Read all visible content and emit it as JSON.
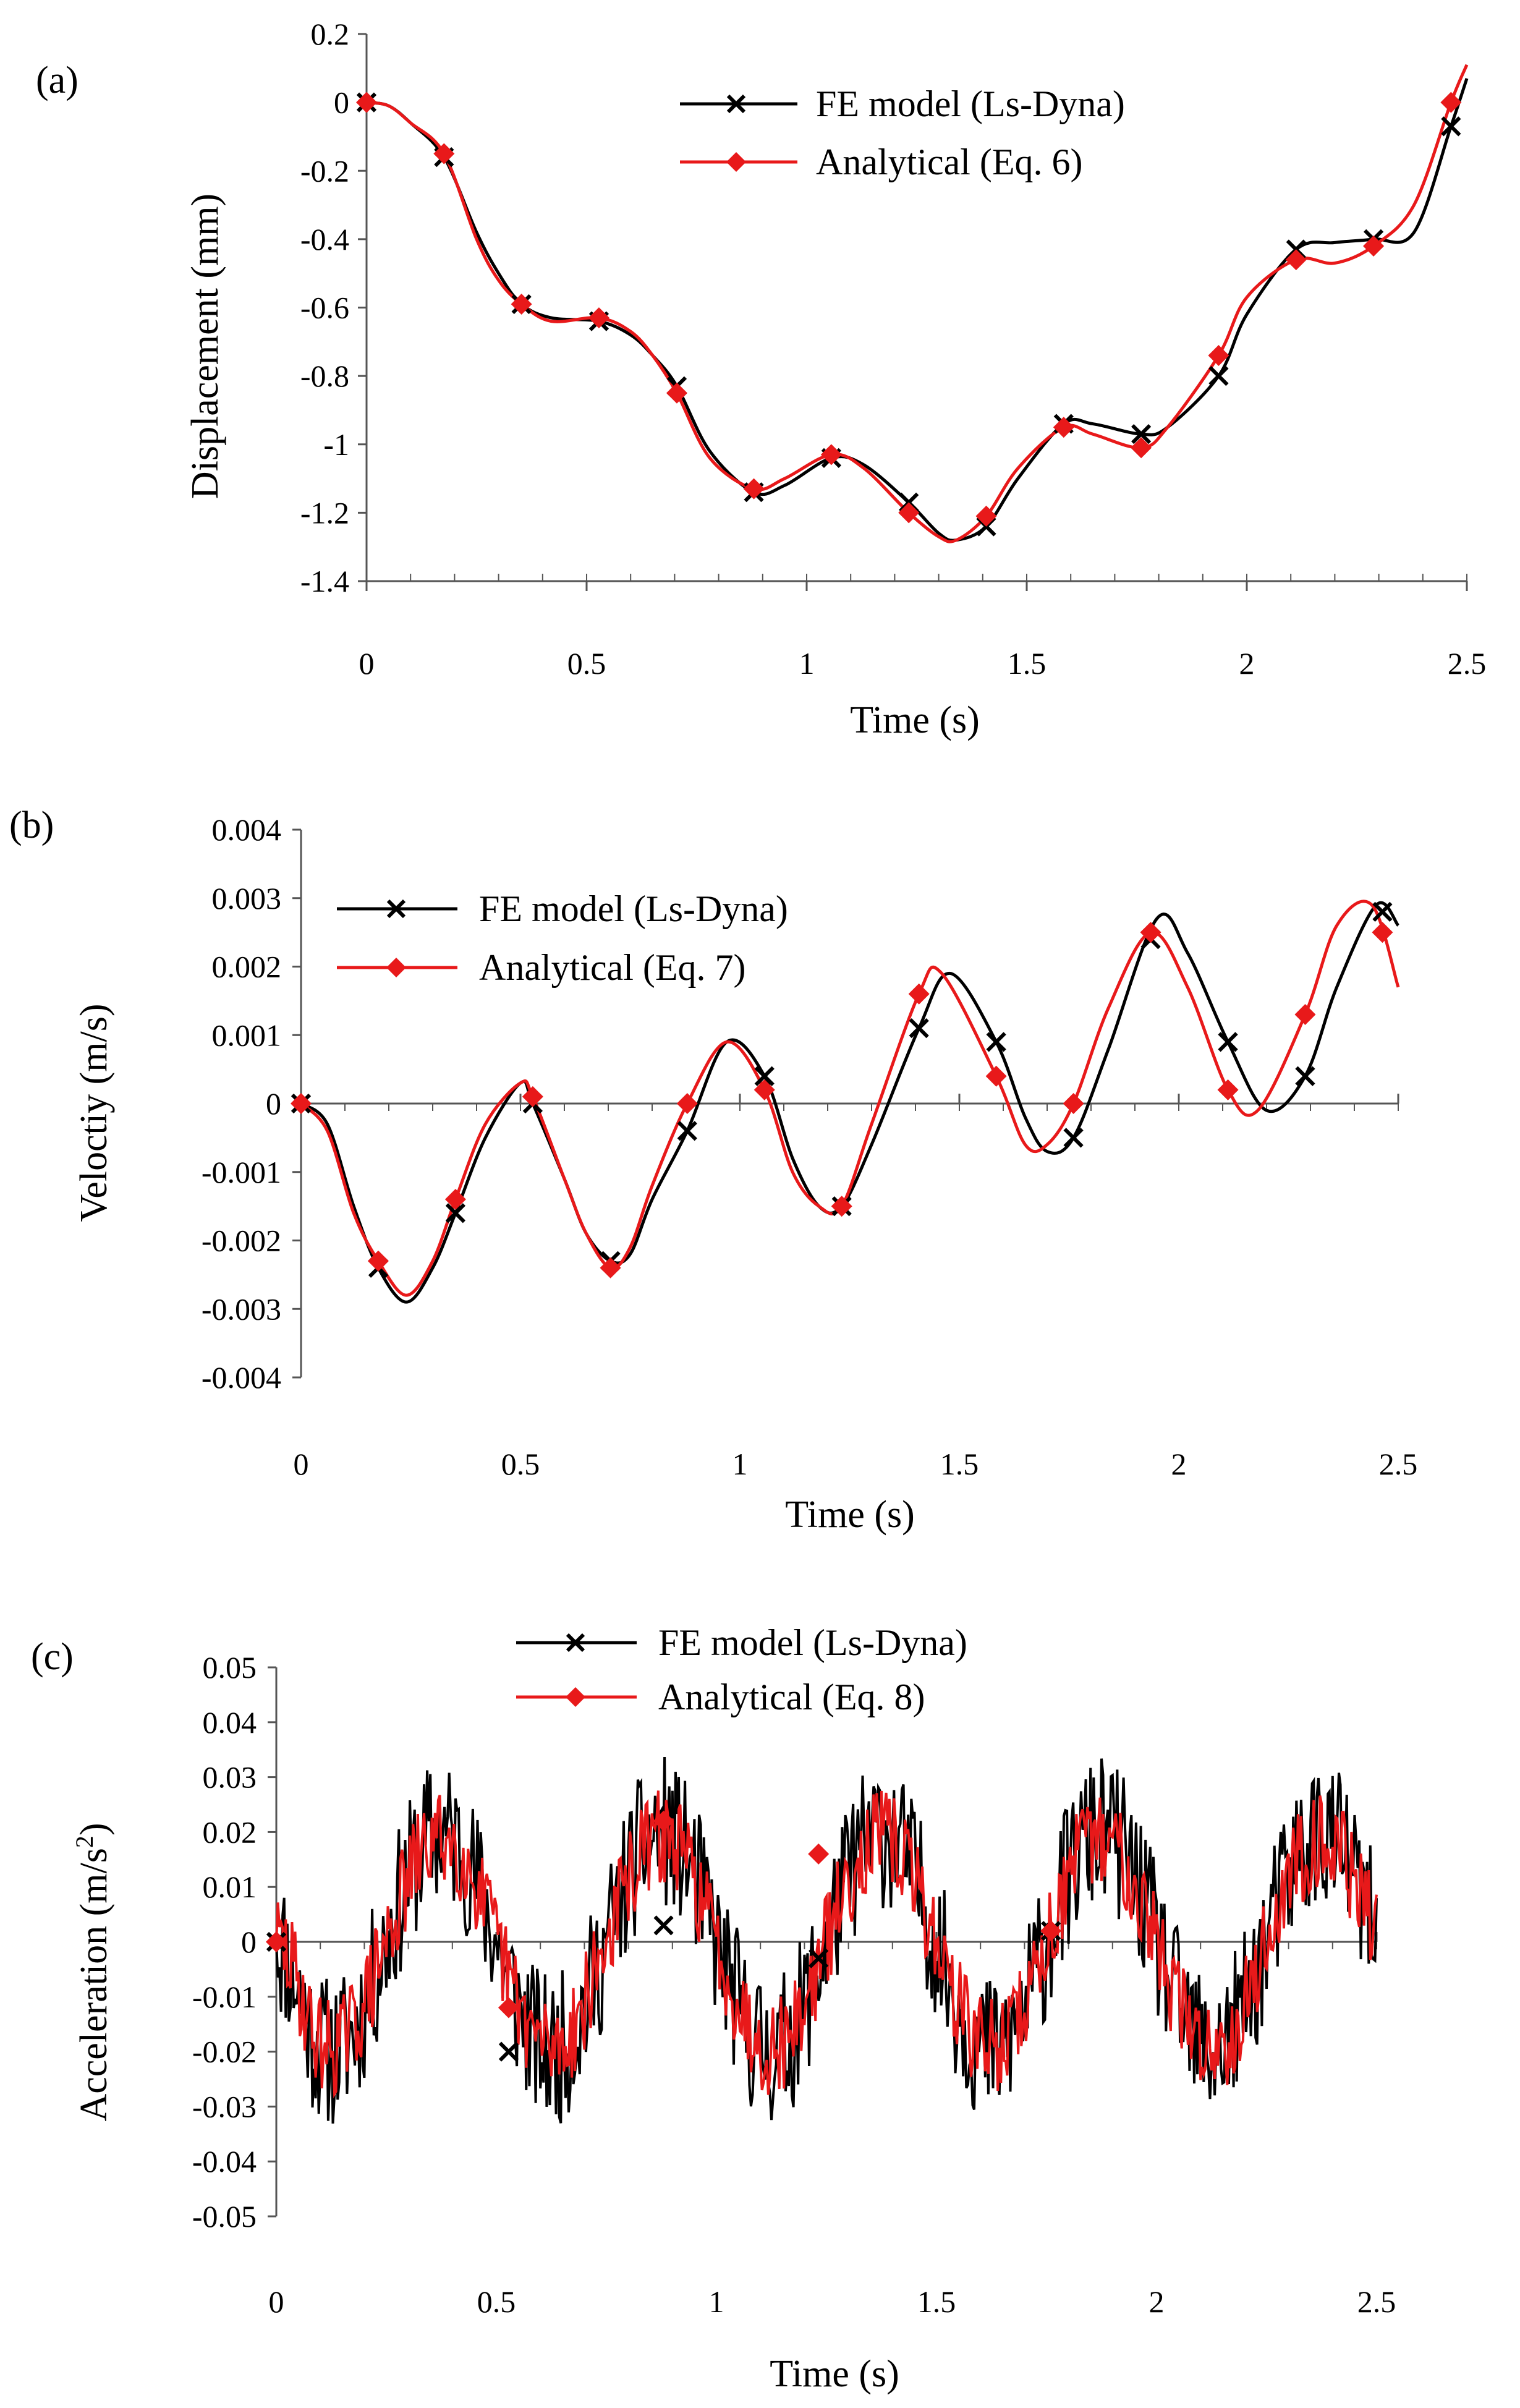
{
  "colors": {
    "fe": "#000000",
    "analytical": "#e8191a"
  },
  "chart_data": [
    {
      "panel": "(a)",
      "type": "line",
      "xlabel": "Time (s)",
      "ylabel": "Displacement (mm)",
      "xlim": [
        0,
        2.5
      ],
      "ylim": [
        -1.4,
        0.2
      ],
      "xticks": [
        "0",
        "0.5",
        "1",
        "1.5",
        "2",
        "2.5"
      ],
      "xtick_values": [
        0,
        0.5,
        1,
        1.5,
        2,
        2.5
      ],
      "yticks": [
        "0.2",
        "0",
        "-0.2",
        "-0.4",
        "-0.6",
        "-0.8",
        "-1",
        "-1.2",
        "-1.4"
      ],
      "ytick_values": [
        0.2,
        0,
        -0.2,
        -0.4,
        -0.6,
        -0.8,
        -1,
        -1.2,
        -1.4
      ],
      "grid": false,
      "legend_position": "top-right",
      "series": [
        {
          "name": "FE model (Ls-Dyna)",
          "color": "#000000",
          "marker": "x",
          "x": [
            0,
            0.05,
            0.1,
            0.176,
            0.25,
            0.3,
            0.352,
            0.42,
            0.528,
            0.6,
            0.65,
            0.705,
            0.78,
            0.88,
            0.95,
            1.056,
            1.13,
            1.232,
            1.3,
            1.34,
            1.408,
            1.48,
            1.584,
            1.65,
            1.76,
            1.82,
            1.936,
            2.0,
            2.112,
            2.2,
            2.288,
            2.38,
            2.464,
            2.5
          ],
          "y": [
            0,
            -0.01,
            -0.06,
            -0.16,
            -0.38,
            -0.5,
            -0.59,
            -0.63,
            -0.64,
            -0.68,
            -0.74,
            -0.83,
            -1.02,
            -1.14,
            -1.12,
            -1.04,
            -1.06,
            -1.17,
            -1.26,
            -1.28,
            -1.24,
            -1.1,
            -0.94,
            -0.94,
            -0.97,
            -0.95,
            -0.8,
            -0.62,
            -0.43,
            -0.41,
            -0.4,
            -0.38,
            -0.07,
            0.07
          ],
          "markers_x": [
            0,
            0.176,
            0.352,
            0.528,
            0.705,
            0.88,
            1.056,
            1.232,
            1.408,
            1.584,
            1.76,
            1.936,
            2.112,
            2.288,
            2.464
          ],
          "markers_y": [
            0,
            -0.16,
            -0.59,
            -0.64,
            -0.83,
            -1.14,
            -1.04,
            -1.17,
            -1.24,
            -0.94,
            -0.97,
            -0.8,
            -0.43,
            -0.4,
            -0.07
          ]
        },
        {
          "name": "Analytical (Eq. 6)",
          "color": "#e8191a",
          "marker": "diamond",
          "x": [
            0,
            0.05,
            0.1,
            0.176,
            0.25,
            0.3,
            0.352,
            0.42,
            0.528,
            0.6,
            0.65,
            0.705,
            0.78,
            0.88,
            0.95,
            1.056,
            1.13,
            1.232,
            1.3,
            1.34,
            1.408,
            1.48,
            1.584,
            1.65,
            1.76,
            1.82,
            1.936,
            2.0,
            2.112,
            2.2,
            2.288,
            2.38,
            2.464,
            2.5
          ],
          "y": [
            0,
            -0.01,
            -0.06,
            -0.15,
            -0.4,
            -0.52,
            -0.59,
            -0.64,
            -0.63,
            -0.67,
            -0.74,
            -0.85,
            -1.04,
            -1.13,
            -1.1,
            -1.03,
            -1.07,
            -1.2,
            -1.27,
            -1.28,
            -1.21,
            -1.07,
            -0.95,
            -0.97,
            -1.01,
            -0.95,
            -0.74,
            -0.57,
            -0.46,
            -0.47,
            -0.42,
            -0.3,
            0,
            0.11
          ],
          "markers_x": [
            0,
            0.176,
            0.352,
            0.528,
            0.705,
            0.88,
            1.056,
            1.232,
            1.408,
            1.584,
            1.76,
            1.936,
            2.112,
            2.288,
            2.464
          ],
          "markers_y": [
            0,
            -0.15,
            -0.59,
            -0.63,
            -0.85,
            -1.13,
            -1.03,
            -1.2,
            -1.21,
            -0.95,
            -1.01,
            -0.74,
            -0.46,
            -0.42,
            0
          ]
        }
      ]
    },
    {
      "panel": "(b)",
      "type": "line",
      "xlabel": "Time (s)",
      "ylabel": "Veloctiy  (m/s)",
      "xlim": [
        0,
        2.5
      ],
      "ylim": [
        -0.004,
        0.004
      ],
      "xticks": [
        "0",
        "0.5",
        "1",
        "1.5",
        "2",
        "2.5"
      ],
      "xtick_values": [
        0,
        0.5,
        1,
        1.5,
        2,
        2.5
      ],
      "yticks": [
        "0.004",
        "0.003",
        "0.002",
        "0.001",
        "0",
        "-0.001",
        "-0.002",
        "-0.003",
        "-0.004"
      ],
      "ytick_values": [
        0.004,
        0.003,
        0.002,
        0.001,
        0,
        -0.001,
        -0.002,
        -0.003,
        -0.004
      ],
      "grid": false,
      "legend_position": "top-left",
      "series": [
        {
          "name": "FE model (Ls-Dyna)",
          "color": "#000000",
          "marker": "x",
          "x": [
            0,
            0.06,
            0.12,
            0.176,
            0.24,
            0.3,
            0.352,
            0.42,
            0.5,
            0.528,
            0.6,
            0.65,
            0.705,
            0.75,
            0.8,
            0.88,
            0.97,
            1.056,
            1.12,
            1.18,
            1.232,
            1.3,
            1.408,
            1.48,
            1.584,
            1.65,
            1.7,
            1.76,
            1.84,
            1.95,
            2.02,
            2.112,
            2.2,
            2.288,
            2.36,
            2.45,
            2.5
          ],
          "y": [
            0,
            -0.0003,
            -0.0015,
            -0.0024,
            -0.0029,
            -0.0024,
            -0.0016,
            -0.0005,
            0.0003,
            0.0,
            -0.0011,
            -0.0019,
            -0.0023,
            -0.0022,
            -0.0014,
            -0.0004,
            0.0009,
            0.0004,
            -0.0008,
            -0.0015,
            -0.0015,
            -0.0006,
            0.0011,
            0.0019,
            0.0009,
            -0.0002,
            -0.0007,
            -0.0005,
            0.0008,
            0.0027,
            0.0022,
            0.0009,
            -0.0001,
            0.0004,
            0.0017,
            0.0029,
            0.0026
          ],
          "markers_x": [
            0,
            0.176,
            0.352,
            0.528,
            0.705,
            0.88,
            1.056,
            1.232,
            1.408,
            1.584,
            1.76,
            1.936,
            2.112,
            2.288,
            2.464
          ],
          "markers_y": [
            0,
            -0.0024,
            -0.0016,
            0.0,
            -0.0023,
            -0.0004,
            0.0004,
            -0.0015,
            0.0011,
            0.0009,
            -0.0005,
            0.0024,
            0.0009,
            0.0004,
            0.0028
          ]
        },
        {
          "name": "Analytical (Eq. 7)",
          "color": "#e8191a",
          "marker": "diamond",
          "x": [
            0,
            0.06,
            0.12,
            0.176,
            0.24,
            0.3,
            0.352,
            0.42,
            0.5,
            0.528,
            0.6,
            0.65,
            0.705,
            0.75,
            0.8,
            0.88,
            0.97,
            1.056,
            1.12,
            1.18,
            1.232,
            1.3,
            1.408,
            1.46,
            1.584,
            1.65,
            1.7,
            1.76,
            1.84,
            1.936,
            2.02,
            2.112,
            2.18,
            2.288,
            2.36,
            2.44,
            2.5
          ],
          "y": [
            0,
            -0.0004,
            -0.0016,
            -0.0023,
            -0.0028,
            -0.0023,
            -0.0014,
            -0.0003,
            0.0003,
            0.0001,
            -0.0011,
            -0.0019,
            -0.0024,
            -0.0021,
            -0.0012,
            0.0,
            0.0009,
            0.0002,
            -0.001,
            -0.0015,
            -0.0015,
            -0.0003,
            0.0016,
            0.0019,
            0.0004,
            -0.0006,
            -0.0006,
            0.0,
            0.0014,
            0.0025,
            0.0017,
            0.0002,
            -0.0001,
            0.0013,
            0.0026,
            0.0029,
            0.0017
          ],
          "markers_x": [
            0,
            0.176,
            0.352,
            0.528,
            0.705,
            0.88,
            1.056,
            1.232,
            1.408,
            1.584,
            1.76,
            1.936,
            2.112,
            2.288,
            2.464
          ],
          "markers_y": [
            0,
            -0.0023,
            -0.0014,
            0.0001,
            -0.0024,
            0.0,
            0.0002,
            -0.0015,
            0.0016,
            0.0004,
            0.0,
            0.0025,
            0.0002,
            0.0013,
            0.0025
          ]
        }
      ]
    },
    {
      "panel": "(c)",
      "type": "line",
      "xlabel": "Time (s)",
      "ylabel": "Acceleration  (m/s",
      "ylabel_sup": "2",
      "ylabel_end": ")",
      "xlim": [
        0,
        2.5
      ],
      "ylim": [
        -0.05,
        0.05
      ],
      "xticks": [
        "0",
        "0.5",
        "1",
        "1.5",
        "2",
        "2.5"
      ],
      "xtick_values": [
        0,
        0.5,
        1,
        1.5,
        2,
        2.5
      ],
      "yticks": [
        "0.05",
        "0.04",
        "0.03",
        "0.02",
        "0.01",
        "0",
        "-0.01",
        "-0.02",
        "-0.03",
        "-0.04",
        "-0.05"
      ],
      "ytick_values": [
        0.05,
        0.04,
        0.03,
        0.02,
        0.01,
        0,
        -0.01,
        -0.02,
        -0.03,
        -0.04,
        -0.05
      ],
      "grid": false,
      "legend_position": "top-center",
      "signal_model": {
        "fe": {
          "amplitude": 0.02,
          "period": 0.5,
          "noise_amplitude": 0.014,
          "samples": 700
        },
        "analytical": {
          "amplitude": 0.019,
          "period": 0.5,
          "noise_amplitude": 0.009,
          "samples": 700
        }
      },
      "series": [
        {
          "name": "FE model (Ls-Dyna)",
          "color": "#000000",
          "marker": "x",
          "markers_x": [
            0,
            0.528,
            0.88,
            1.232,
            1.76
          ],
          "markers_y": [
            0,
            -0.02,
            0.003,
            -0.003,
            0.002
          ]
        },
        {
          "name": "Analytical (Eq. 8)",
          "color": "#e8191a",
          "marker": "diamond",
          "markers_x": [
            0,
            0.528,
            0.88,
            1.232,
            1.76
          ],
          "markers_y": [
            0,
            -0.012,
            0.022,
            0.016,
            0.002
          ]
        }
      ]
    }
  ]
}
